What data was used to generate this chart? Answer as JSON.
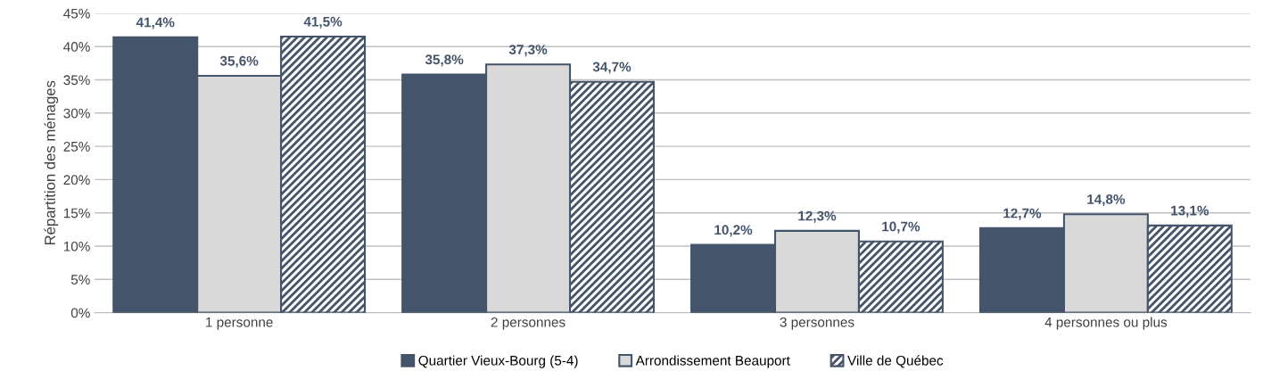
{
  "chart_data": {
    "type": "bar",
    "ylabel": "Répartition des ménages",
    "categories": [
      "1 personne",
      "2 personnes",
      "3 personnes",
      "4 personnes ou plus"
    ],
    "series": [
      {
        "name": "Quartier Vieux-Bourg (5-4)",
        "color": "#44546a",
        "values": [
          41.4,
          35.8,
          10.2,
          12.7
        ],
        "value_labels": [
          "41,4%",
          "35,8%",
          "10,2%",
          "12,7%"
        ]
      },
      {
        "name": "Arrondissement Beauport",
        "color": "#d9d9d9",
        "values": [
          35.6,
          37.3,
          12.3,
          14.8
        ],
        "value_labels": [
          "35,6%",
          "37,3%",
          "12,3%",
          "14,8%"
        ]
      },
      {
        "name": "Ville de Québec",
        "color": "#44546a",
        "values": [
          41.5,
          34.7,
          10.7,
          13.1
        ],
        "value_labels": [
          "41,5%",
          "34,7%",
          "10,7%",
          "13,1%"
        ]
      }
    ],
    "ylim": [
      0,
      45
    ],
    "yticks": [
      {
        "value": 0,
        "label": "0%"
      },
      {
        "value": 5,
        "label": "5%"
      },
      {
        "value": 10,
        "label": "10%"
      },
      {
        "value": 15,
        "label": "15%"
      },
      {
        "value": 20,
        "label": "20%"
      },
      {
        "value": 25,
        "label": "25%"
      },
      {
        "value": 30,
        "label": "30%"
      },
      {
        "value": 35,
        "label": "35%"
      },
      {
        "value": 40,
        "label": "40%"
      },
      {
        "value": 45,
        "label": "45%"
      }
    ],
    "grid": "y",
    "legend": "bottom"
  }
}
